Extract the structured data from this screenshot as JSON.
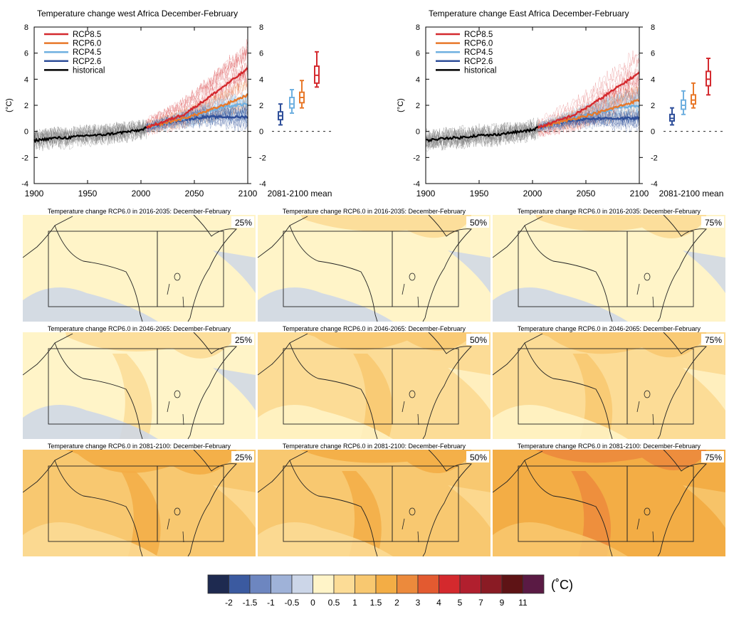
{
  "chart_data": [
    {
      "type": "line",
      "title": "Temperature change west Africa December-February",
      "ylabel": "(°C)",
      "xlim": [
        1900,
        2100
      ],
      "ylim": [
        -4,
        8
      ],
      "x_ticks": [
        "1900",
        "1950",
        "2000",
        "2050",
        "2100"
      ],
      "y_ticks": [
        "-4",
        "-2",
        "0",
        "2",
        "4",
        "6",
        "8"
      ],
      "legend_position": "top-left",
      "legend": [
        "RCP8.5",
        "RCP6.0",
        "RCP4.5",
        "RCP2.6",
        "historical"
      ],
      "colors": {
        "RCP8.5": "#d42a2f",
        "RCP6.0": "#e8782a",
        "RCP4.5": "#6fb0e0",
        "RCP2.6": "#2f4f9a",
        "historical": "#000000"
      },
      "series": [
        {
          "name": "historical",
          "x": [
            1900,
            1910,
            1920,
            1930,
            1940,
            1950,
            1960,
            1970,
            1980,
            1990,
            2000,
            2005
          ],
          "y": [
            -0.7,
            -0.6,
            -0.5,
            -0.5,
            -0.4,
            -0.3,
            -0.3,
            -0.2,
            -0.1,
            0.0,
            0.1,
            0.3
          ]
        },
        {
          "name": "RCP2.6",
          "x": [
            2005,
            2020,
            2040,
            2060,
            2080,
            2100
          ],
          "y": [
            0.3,
            0.6,
            0.9,
            1.1,
            1.1,
            1.1
          ]
        },
        {
          "name": "RCP4.5",
          "x": [
            2005,
            2020,
            2040,
            2060,
            2080,
            2100
          ],
          "y": [
            0.3,
            0.6,
            1.0,
            1.5,
            1.9,
            2.1
          ]
        },
        {
          "name": "RCP6.0",
          "x": [
            2005,
            2020,
            2040,
            2060,
            2080,
            2100
          ],
          "y": [
            0.3,
            0.6,
            1.0,
            1.5,
            2.1,
            2.8
          ]
        },
        {
          "name": "RCP8.5",
          "x": [
            2005,
            2020,
            2040,
            2060,
            2080,
            2100
          ],
          "y": [
            0.3,
            0.7,
            1.3,
            2.4,
            3.6,
            4.8
          ]
        }
      ],
      "boxplot_label": "2081-2100 mean",
      "boxplots": [
        {
          "name": "RCP2.6",
          "min": 0.5,
          "q1": 0.9,
          "median": 1.2,
          "q3": 1.5,
          "max": 2.1
        },
        {
          "name": "RCP4.5",
          "min": 1.4,
          "q1": 1.8,
          "median": 2.1,
          "q3": 2.6,
          "max": 3.2
        },
        {
          "name": "RCP6.0",
          "min": 1.8,
          "q1": 2.2,
          "median": 2.6,
          "q3": 3.0,
          "max": 3.9
        },
        {
          "name": "RCP8.5",
          "min": 3.4,
          "q1": 3.7,
          "median": 4.3,
          "q3": 5.0,
          "max": 6.1
        }
      ]
    },
    {
      "type": "line",
      "title": "Temperature change East Africa December-February",
      "ylabel": "(°C)",
      "xlim": [
        1900,
        2100
      ],
      "ylim": [
        -4,
        8
      ],
      "x_ticks": [
        "1900",
        "1950",
        "2000",
        "2050",
        "2100"
      ],
      "y_ticks": [
        "-4",
        "-2",
        "0",
        "2",
        "4",
        "6",
        "8"
      ],
      "legend_position": "top-left",
      "legend": [
        "RCP8.5",
        "RCP6.0",
        "RCP4.5",
        "RCP2.6",
        "historical"
      ],
      "colors": {
        "RCP8.5": "#d42a2f",
        "RCP6.0": "#e8782a",
        "RCP4.5": "#6fb0e0",
        "RCP2.6": "#2f4f9a",
        "historical": "#000000"
      },
      "series": [
        {
          "name": "historical",
          "x": [
            1900,
            1910,
            1920,
            1930,
            1940,
            1950,
            1960,
            1970,
            1980,
            1990,
            2000,
            2005
          ],
          "y": [
            -0.7,
            -0.6,
            -0.5,
            -0.5,
            -0.4,
            -0.3,
            -0.3,
            -0.2,
            -0.1,
            0.0,
            0.1,
            0.3
          ]
        },
        {
          "name": "RCP2.6",
          "x": [
            2005,
            2020,
            2040,
            2060,
            2080,
            2100
          ],
          "y": [
            0.3,
            0.6,
            0.9,
            1.0,
            1.0,
            1.0
          ]
        },
        {
          "name": "RCP4.5",
          "x": [
            2005,
            2020,
            2040,
            2060,
            2080,
            2100
          ],
          "y": [
            0.3,
            0.6,
            1.0,
            1.4,
            1.8,
            2.0
          ]
        },
        {
          "name": "RCP6.0",
          "x": [
            2005,
            2020,
            2040,
            2060,
            2080,
            2100
          ],
          "y": [
            0.3,
            0.6,
            1.0,
            1.4,
            1.9,
            2.4
          ]
        },
        {
          "name": "RCP8.5",
          "x": [
            2005,
            2020,
            2040,
            2060,
            2080,
            2100
          ],
          "y": [
            0.3,
            0.7,
            1.3,
            2.3,
            3.4,
            4.5
          ]
        }
      ],
      "boxplot_label": "2081-2100 mean",
      "boxplots": [
        {
          "name": "RCP2.6",
          "min": 0.5,
          "q1": 0.8,
          "median": 1.0,
          "q3": 1.3,
          "max": 1.8
        },
        {
          "name": "RCP4.5",
          "min": 1.3,
          "q1": 1.7,
          "median": 2.0,
          "q3": 2.4,
          "max": 3.1
        },
        {
          "name": "RCP6.0",
          "min": 1.8,
          "q1": 2.1,
          "median": 2.4,
          "q3": 2.8,
          "max": 3.7
        },
        {
          "name": "RCP8.5",
          "min": 2.8,
          "q1": 3.5,
          "median": 4.0,
          "q3": 4.6,
          "max": 5.6
        }
      ]
    },
    {
      "type": "heatmap",
      "title_template": "Temperature change RCP6.0 in {period}: December-February",
      "periods": [
        "2016-2035",
        "2046-2065",
        "2081-2100"
      ],
      "percentiles": [
        "25%",
        "50%",
        "75%"
      ],
      "typical_change_class_index": [
        [
          5,
          5,
          5
        ],
        [
          5,
          6,
          6
        ],
        [
          7,
          7,
          8
        ]
      ],
      "panels": [
        {
          "title": "Temperature change RCP6.0 in 2016-2035: December-February",
          "percentile": "25%"
        },
        {
          "title": "Temperature change RCP6.0 in 2016-2035: December-February",
          "percentile": "50%"
        },
        {
          "title": "Temperature change RCP6.0 in 2016-2035: December-February",
          "percentile": "75%"
        },
        {
          "title": "Temperature change RCP6.0 in 2046-2065: December-February",
          "percentile": "25%"
        },
        {
          "title": "Temperature change RCP6.0 in 2046-2065: December-February",
          "percentile": "50%"
        },
        {
          "title": "Temperature change RCP6.0 in 2046-2065: December-February",
          "percentile": "75%"
        },
        {
          "title": "Temperature change RCP6.0 in 2081-2100: December-February",
          "percentile": "25%"
        },
        {
          "title": "Temperature change RCP6.0 in 2081-2100: December-February",
          "percentile": "50%"
        },
        {
          "title": "Temperature change RCP6.0 in 2081-2100: December-February",
          "percentile": "75%"
        }
      ],
      "colorbar": {
        "unit": "(˚C)",
        "labels": [
          "-2",
          "-1.5",
          "-1",
          "-0.5",
          "0",
          "0.5",
          "1",
          "1.5",
          "2",
          "3",
          "4",
          "5",
          "7",
          "9",
          "11"
        ],
        "colors": [
          "#1e2a50",
          "#3b5aa0",
          "#6d86c0",
          "#9fb2d8",
          "#ccd6e8",
          "#fff4c8",
          "#fcdc96",
          "#f8c870",
          "#f3ad45",
          "#ec8a3c",
          "#e35a30",
          "#d4292d",
          "#b11f2e",
          "#8a1b24",
          "#5e1315",
          "#5a1a44"
        ]
      }
    }
  ]
}
